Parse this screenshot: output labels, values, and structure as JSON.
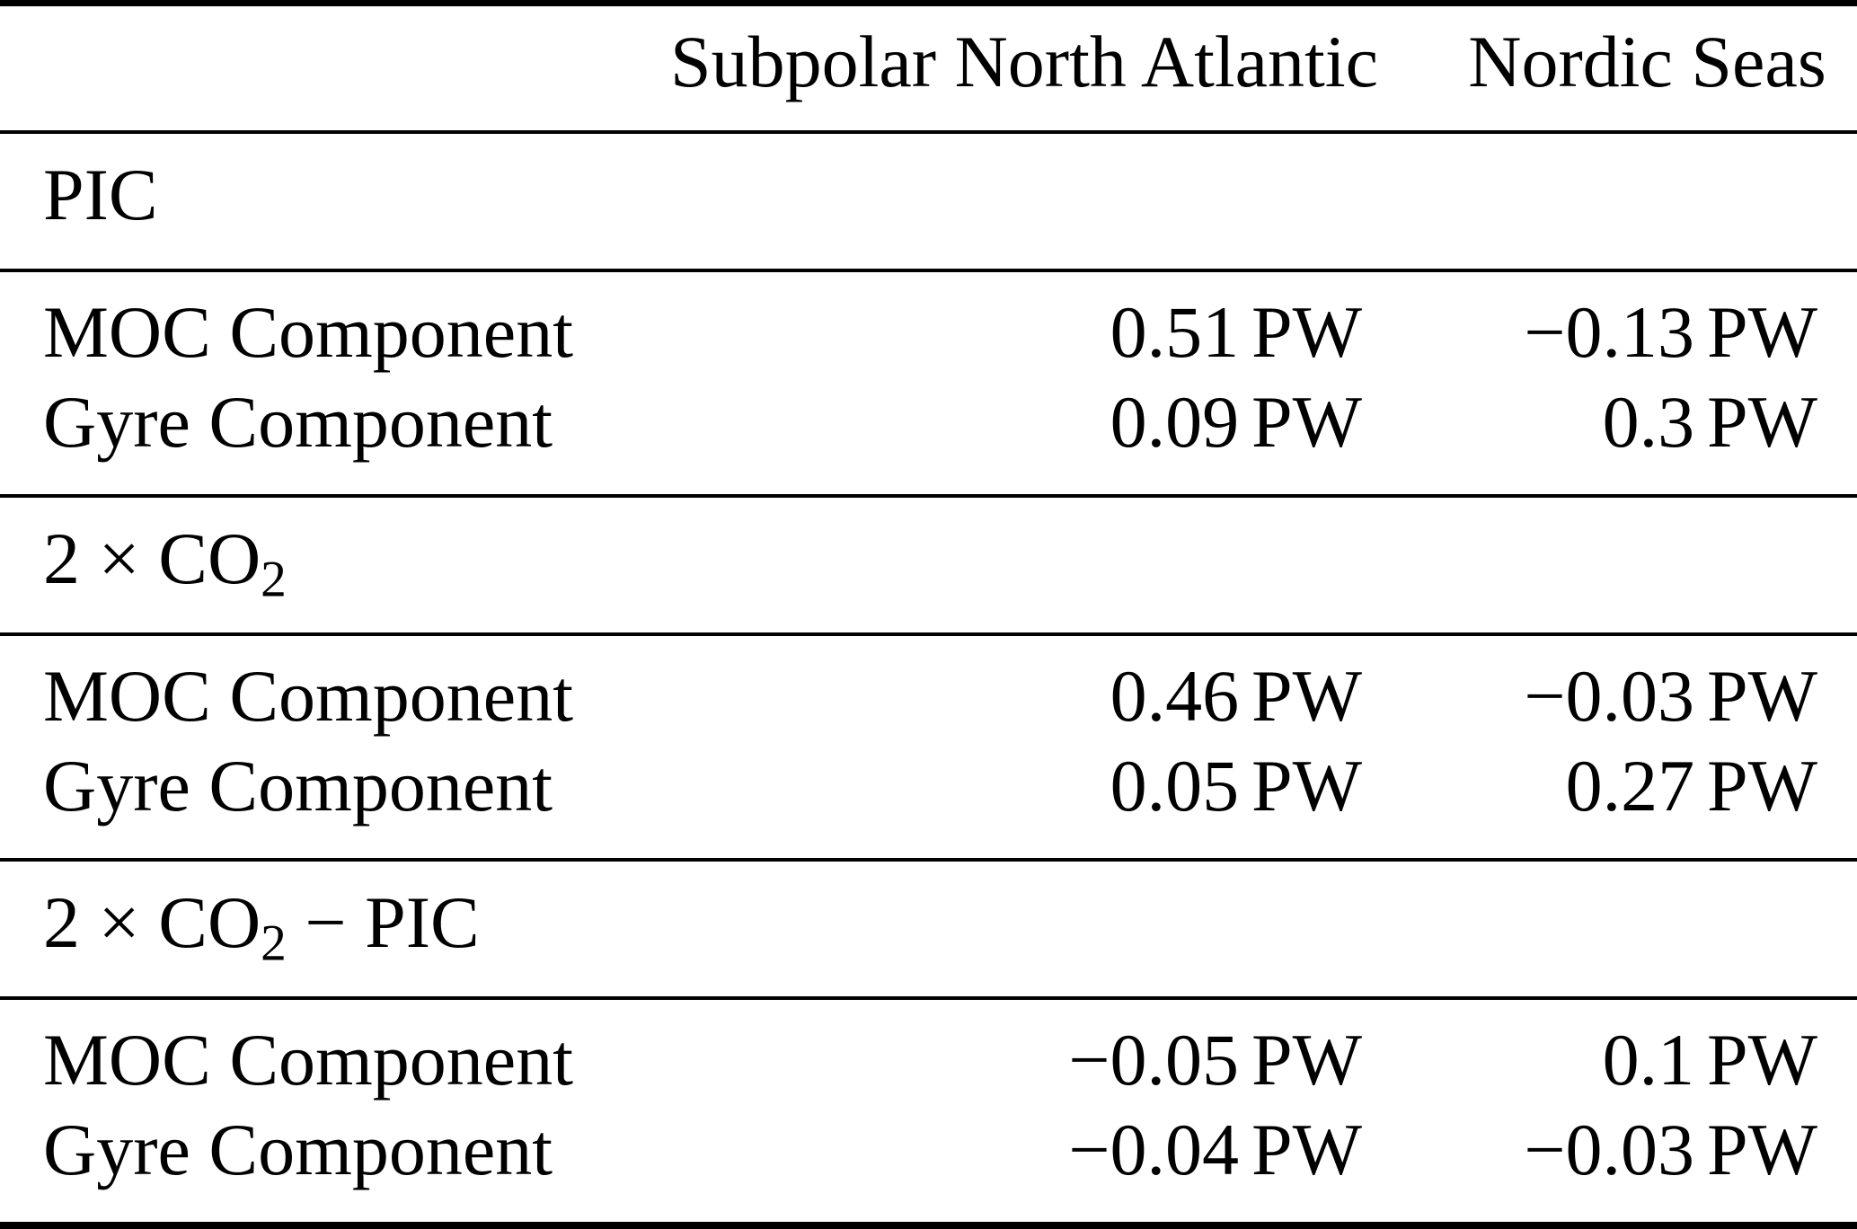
{
  "table": {
    "unit": "PW",
    "header": [
      "",
      "Subpolar North Atlantic",
      "Nordic Seas"
    ],
    "sections": [
      {
        "label": {
          "pre": "PIC",
          "sub": "",
          "post": ""
        },
        "rows": [
          {
            "label": "MOC Component",
            "values": [
              "0.51",
              "−0.13"
            ]
          },
          {
            "label": "Gyre Component",
            "values": [
              "0.09",
              "0.3"
            ]
          }
        ]
      },
      {
        "label": {
          "pre": "2 × CO",
          "sub": "2",
          "post": ""
        },
        "rows": [
          {
            "label": "MOC Component",
            "values": [
              "0.46",
              "−0.03"
            ]
          },
          {
            "label": "Gyre Component",
            "values": [
              "0.05",
              "0.27"
            ]
          }
        ]
      },
      {
        "label": {
          "pre": "2 × CO",
          "sub": "2",
          "post": " − PIC"
        },
        "rows": [
          {
            "label": "MOC Component",
            "values": [
              "−0.05",
              "0.1"
            ]
          },
          {
            "label": "Gyre Component",
            "values": [
              "−0.04",
              "−0.03"
            ]
          }
        ]
      }
    ]
  }
}
